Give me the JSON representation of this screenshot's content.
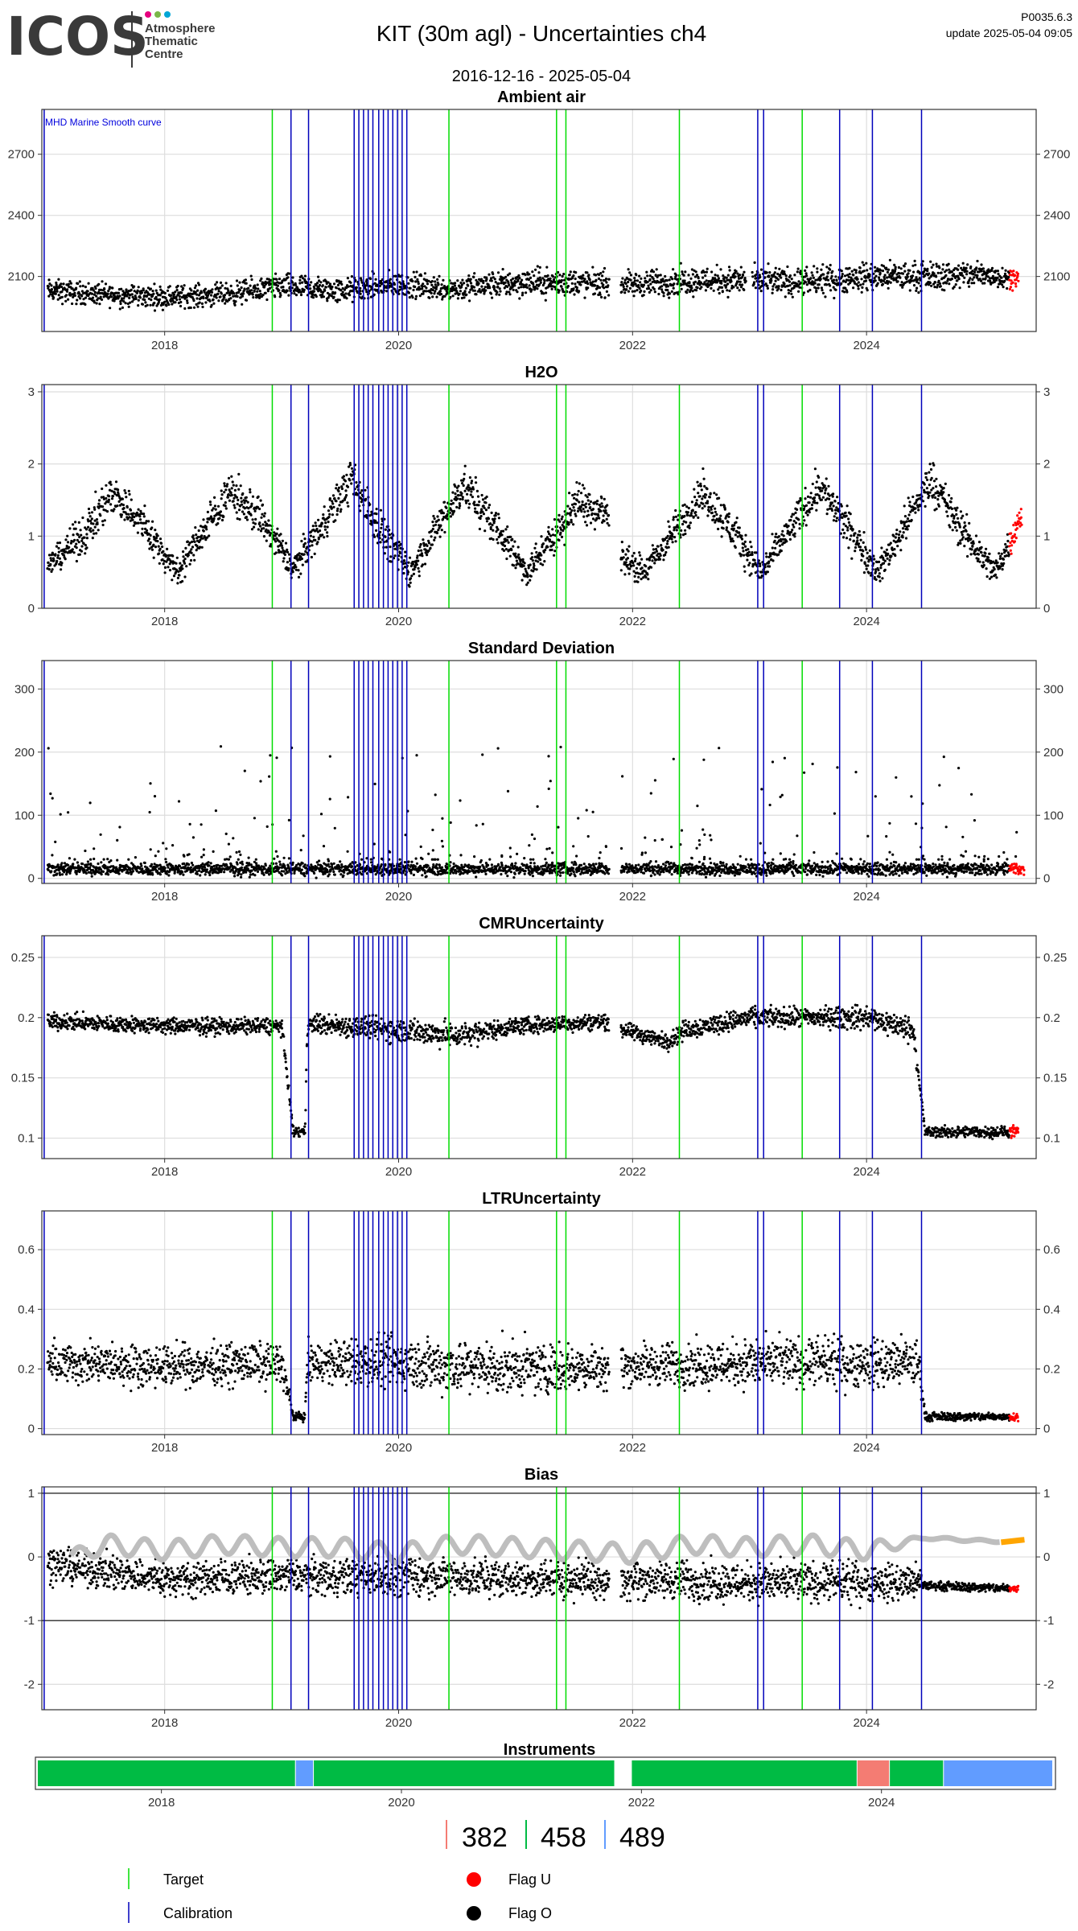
{
  "header": {
    "logo_text": "ICOS",
    "logo_sub": [
      "Atmosphere",
      "Thematic",
      "Centre"
    ],
    "logo_dot_colors": [
      "#e6007e",
      "#7ab648",
      "#00a6d6"
    ],
    "title": "KIT  (30m agl) - Uncertainties ch4",
    "date_range": "2016-12-16 - 2025-05-04",
    "version": "P0035.6.3",
    "update": "update  2025-05-04 09:05"
  },
  "colors": {
    "data": "#000000",
    "flag_u": "#ff0000",
    "target_line": "#00dd00",
    "calibration_line": "#0000bb",
    "smooth_curve": "#bebebe",
    "smooth_curve_recent": "#ffa500",
    "grid": "#dddddd",
    "instrument_382": "#f47c73",
    "instrument_458": "#00bb44",
    "instrument_489": "#619cff"
  },
  "vertical_lines": {
    "target": [
      2018.92,
      2020.43,
      2021.35,
      2021.43,
      2022.4,
      2023.45
    ],
    "calibration": [
      2016.97,
      2019.08,
      2019.23,
      2019.62,
      2019.66,
      2019.7,
      2019.74,
      2019.78,
      2019.83,
      2019.87,
      2019.91,
      2019.95,
      2019.99,
      2020.03,
      2020.07,
      2023.07,
      2023.12,
      2023.77,
      2024.05,
      2024.47
    ]
  },
  "chart_data": [
    {
      "type": "scatter",
      "title": "Ambient air",
      "annotation": "MHD Marine Smooth curve",
      "xlim": [
        2016.95,
        2025.45
      ],
      "ylim": [
        1830,
        2920
      ],
      "yticks": [
        2100,
        2400,
        2700
      ],
      "xticks": [
        2018,
        2020,
        2022,
        2024
      ],
      "gaps": [
        [
          2021.8,
          2021.9
        ],
        [
          2022.97,
          2023.02
        ]
      ],
      "series": [
        {
          "x": [
            2017.0,
            2017.5,
            2018.0,
            2018.5,
            2019.0,
            2019.5,
            2020.0,
            2020.5,
            2021.0,
            2021.5,
            2022.0,
            2022.5,
            2023.0,
            2023.5,
            2024.0,
            2024.5,
            2025.0,
            2025.3
          ],
          "y": [
            2030,
            2010,
            2000,
            2010,
            2050,
            2030,
            2060,
            2040,
            2070,
            2070,
            2060,
            2080,
            2080,
            2070,
            2100,
            2100,
            2110,
            2090
          ],
          "spread": [
            80,
            80,
            80,
            80,
            90,
            90,
            90,
            90,
            100,
            100,
            90,
            100,
            100,
            100,
            100,
            100,
            100,
            60
          ]
        }
      ]
    },
    {
      "type": "scatter",
      "title": "H2O",
      "xlim": [
        2016.95,
        2025.45
      ],
      "ylim": [
        0,
        3.1
      ],
      "yticks": [
        0,
        1,
        2,
        3
      ],
      "xticks": [
        2018,
        2020,
        2022,
        2024
      ],
      "gaps": [
        [
          2021.8,
          2021.9
        ]
      ],
      "series": [
        {
          "x": [
            2017.0,
            2017.3,
            2017.55,
            2017.8,
            2018.1,
            2018.55,
            2018.8,
            2019.1,
            2019.6,
            2019.8,
            2020.1,
            2020.55,
            2020.8,
            2021.1,
            2021.55,
            2021.78,
            2021.92,
            2022.1,
            2022.6,
            2022.8,
            2023.1,
            2023.6,
            2023.8,
            2024.1,
            2024.55,
            2024.8,
            2025.1,
            2025.33
          ],
          "y": [
            0.6,
            1.0,
            1.6,
            1.2,
            0.5,
            1.6,
            1.3,
            0.55,
            1.8,
            1.2,
            0.5,
            1.7,
            1.2,
            0.5,
            1.5,
            1.3,
            0.7,
            0.5,
            1.6,
            1.2,
            0.5,
            1.7,
            1.2,
            0.5,
            1.8,
            1.1,
            0.5,
            1.3
          ],
          "spread": [
            0.2,
            0.4,
            0.4,
            0.4,
            0.3,
            0.4,
            0.4,
            0.3,
            0.4,
            0.4,
            0.3,
            0.4,
            0.4,
            0.3,
            0.4,
            0.4,
            0.3,
            0.3,
            0.4,
            0.4,
            0.3,
            0.4,
            0.4,
            0.3,
            0.4,
            0.4,
            0.3,
            0.3
          ]
        }
      ]
    },
    {
      "type": "scatter",
      "title": "Standard Deviation",
      "xlim": [
        2016.95,
        2025.45
      ],
      "ylim": [
        -8,
        345
      ],
      "yticks": [
        0,
        100,
        200,
        300
      ],
      "xticks": [
        2018,
        2020,
        2022,
        2024
      ],
      "gaps": [
        [
          2021.8,
          2021.9
        ]
      ],
      "series": [
        {
          "x": [
            2017.0,
            2025.35
          ],
          "y": [
            15,
            15
          ],
          "spread": [
            15,
            15
          ]
        }
      ]
    },
    {
      "type": "scatter",
      "title": "CMRUncertainty",
      "xlim": [
        2016.95,
        2025.45
      ],
      "ylim": [
        0.083,
        0.268
      ],
      "yticks": [
        0.1,
        0.15,
        0.2,
        0.25
      ],
      "xticks": [
        2018,
        2020,
        2022,
        2024
      ],
      "gaps": [
        [
          2021.8,
          2021.9
        ]
      ],
      "series": [
        {
          "x": [
            2017.0,
            2018.0,
            2019.0,
            2019.1,
            2019.2,
            2019.22,
            2020.0,
            2020.5,
            2021.0,
            2021.8,
            2021.9,
            2022.3,
            2022.45,
            2023.0,
            2023.5,
            2024.0,
            2024.4,
            2024.5,
            2025.3
          ],
          "y": [
            0.197,
            0.193,
            0.193,
            0.105,
            0.105,
            0.195,
            0.19,
            0.185,
            0.193,
            0.197,
            0.19,
            0.18,
            0.19,
            0.2,
            0.2,
            0.2,
            0.19,
            0.105,
            0.105
          ],
          "spread": [
            0.01,
            0.01,
            0.01,
            0.006,
            0.006,
            0.012,
            0.015,
            0.015,
            0.01,
            0.01,
            0.01,
            0.01,
            0.012,
            0.012,
            0.012,
            0.015,
            0.015,
            0.007,
            0.007
          ]
        }
      ]
    },
    {
      "type": "scatter",
      "title": "LTRUncertainty",
      "xlim": [
        2016.95,
        2025.45
      ],
      "ylim": [
        -0.02,
        0.73
      ],
      "yticks": [
        0,
        0.2,
        0.4,
        0.6
      ],
      "xticks": [
        2018,
        2020,
        2022,
        2024
      ],
      "gaps": [
        [
          2021.8,
          2021.9
        ]
      ],
      "series": [
        {
          "x": [
            2017.0,
            2018.0,
            2019.0,
            2019.1,
            2019.2,
            2019.22,
            2020.0,
            2021.0,
            2022.0,
            2023.0,
            2024.0,
            2024.45,
            2024.5,
            2025.3
          ],
          "y": [
            0.22,
            0.21,
            0.22,
            0.04,
            0.04,
            0.22,
            0.22,
            0.2,
            0.21,
            0.22,
            0.22,
            0.22,
            0.04,
            0.04
          ],
          "spread": [
            0.1,
            0.1,
            0.1,
            0.02,
            0.02,
            0.1,
            0.13,
            0.13,
            0.1,
            0.12,
            0.12,
            0.12,
            0.02,
            0.02
          ]
        }
      ]
    },
    {
      "type": "scatter",
      "title": "Bias",
      "xlim": [
        2016.95,
        2025.45
      ],
      "ylim": [
        -2.4,
        1.1
      ],
      "yticks": [
        -2,
        -1,
        0,
        1
      ],
      "hlines": [
        -1,
        1
      ],
      "xticks": [
        2018,
        2020,
        2022,
        2024
      ],
      "gaps": [
        [
          2021.8,
          2021.9
        ]
      ],
      "series": [
        {
          "x": [
            2017.0,
            2018.0,
            2019.0,
            2020.0,
            2021.0,
            2022.0,
            2023.0,
            2024.0,
            2024.45,
            2024.5,
            2025.3
          ],
          "y": [
            -0.1,
            -0.35,
            -0.3,
            -0.3,
            -0.35,
            -0.35,
            -0.4,
            -0.4,
            -0.4,
            -0.45,
            -0.5
          ],
          "spread": [
            0.4,
            0.4,
            0.4,
            0.45,
            0.4,
            0.45,
            0.45,
            0.45,
            0.4,
            0.1,
            0.1
          ]
        }
      ],
      "smooth": {
        "x": [
          2017.2,
          2017.5,
          2018.0,
          2018.5,
          2019.0,
          2019.5,
          2020.0,
          2020.5,
          2021.0,
          2021.5,
          2022.0,
          2022.5,
          2023.0,
          2023.5,
          2024.0,
          2024.5,
          2025.0,
          2025.3
        ],
        "y": [
          0.0,
          0.2,
          0.1,
          0.2,
          0.15,
          0.15,
          0.05,
          0.2,
          0.15,
          0.1,
          0.05,
          0.2,
          0.15,
          0.2,
          0.1,
          0.3,
          0.25,
          0.25
        ],
        "osc": [
          0.1,
          0.15,
          0.15,
          0.15,
          0.15,
          0.15,
          0.15,
          0.15,
          0.15,
          0.15,
          0.15,
          0.15,
          0.15,
          0.15,
          0.15,
          0.02,
          0.02,
          0.02
        ]
      }
    }
  ],
  "instruments": {
    "title": "Instruments",
    "xlim": [
      2016.95,
      2025.45
    ],
    "xticks": [
      2018,
      2020,
      2022,
      2024
    ],
    "segments": [
      {
        "start": 2016.97,
        "end": 2019.12,
        "id": "458"
      },
      {
        "start": 2019.12,
        "end": 2019.27,
        "id": "489"
      },
      {
        "start": 2019.27,
        "end": 2021.78,
        "id": "458"
      },
      {
        "start": 2021.92,
        "end": 2023.8,
        "id": "458"
      },
      {
        "start": 2023.8,
        "end": 2024.07,
        "id": "382"
      },
      {
        "start": 2024.07,
        "end": 2024.52,
        "id": "458"
      },
      {
        "start": 2024.52,
        "end": 2025.43,
        "id": "489"
      }
    ],
    "legend": [
      {
        "id": "382",
        "color": "#f47c73"
      },
      {
        "id": "458",
        "color": "#00bb44"
      },
      {
        "id": "489",
        "color": "#619cff"
      }
    ]
  },
  "legend": {
    "target": "Target",
    "calibration": "Calibration",
    "flag_u": "Flag U",
    "flag_o": "Flag O"
  },
  "xtick_labels": [
    "2018",
    "2020",
    "2022",
    "2024"
  ]
}
